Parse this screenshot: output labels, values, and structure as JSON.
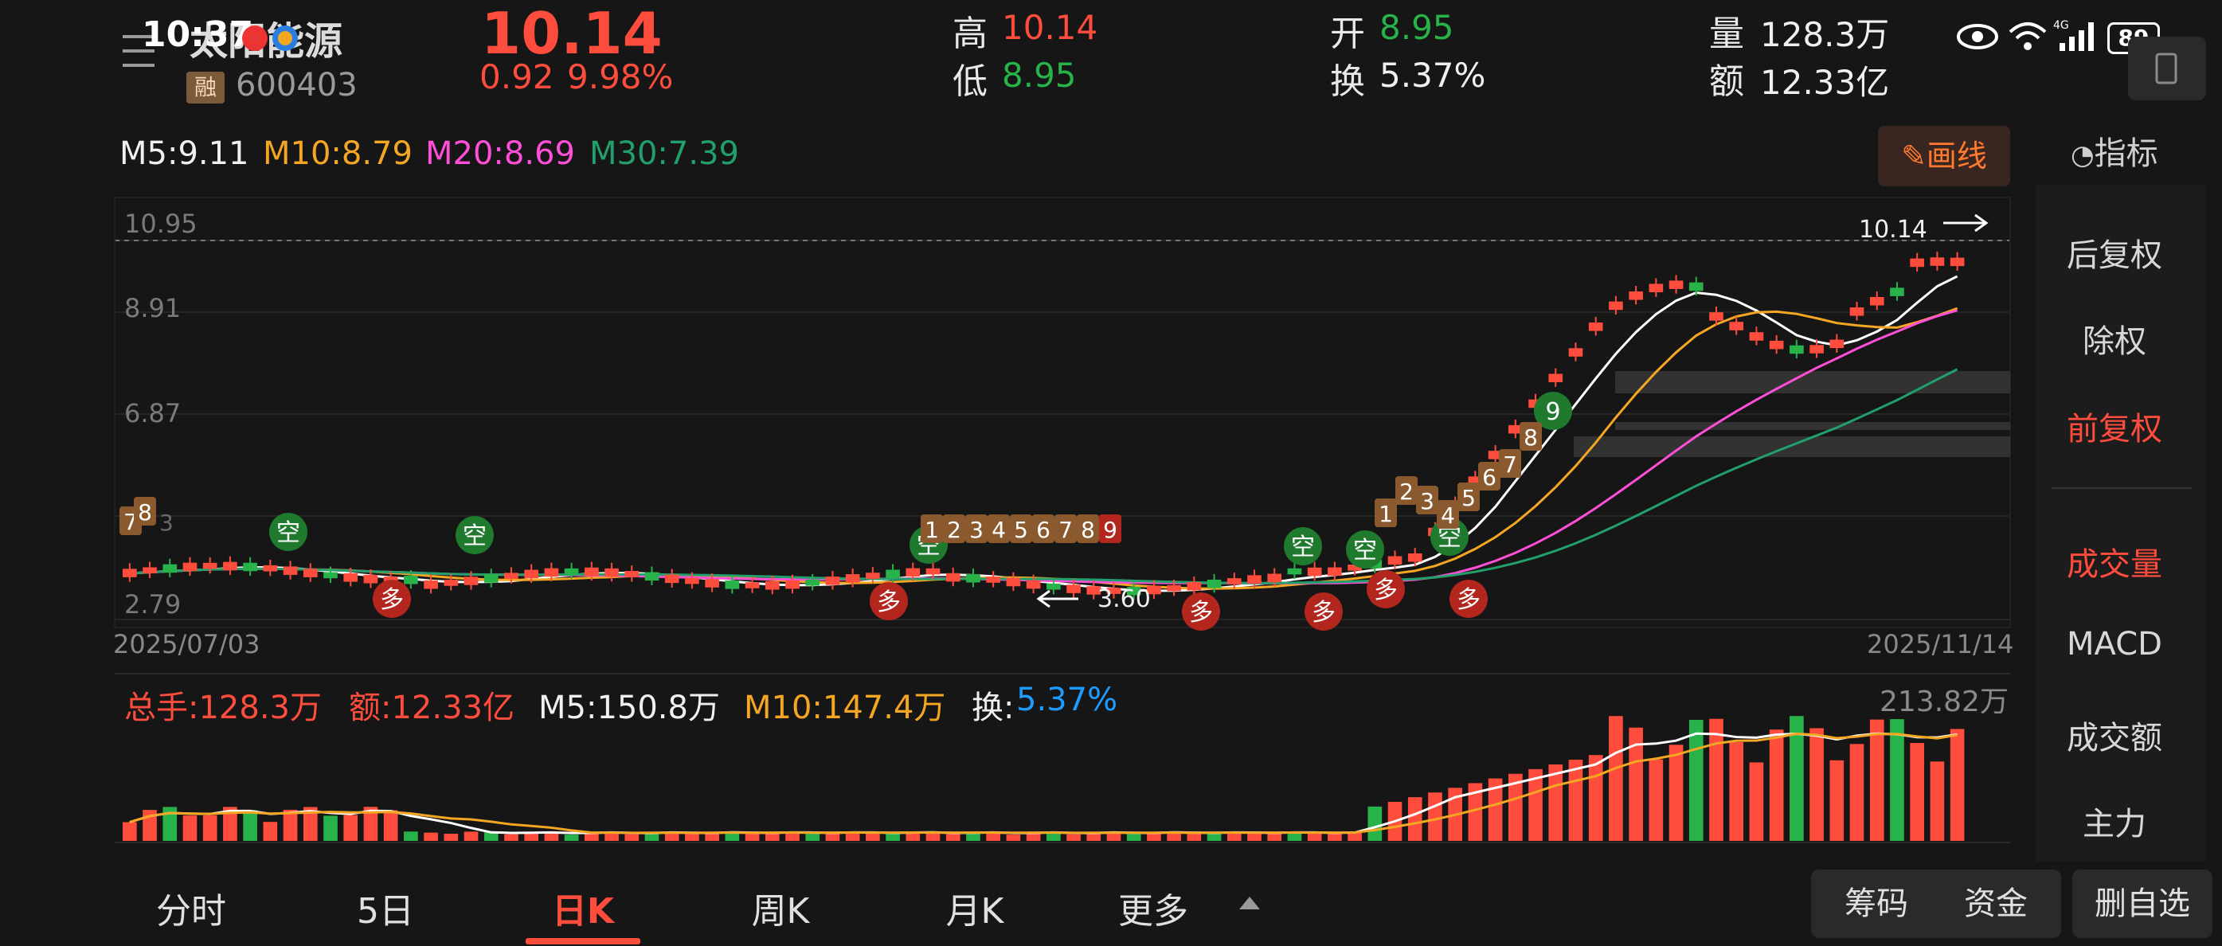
{
  "status_bar": {
    "time": "10:37",
    "battery": "89",
    "network": "4G"
  },
  "header": {
    "stock_name": "太阳能源",
    "badge": "融",
    "code": "600403",
    "price": "10.14",
    "change": "0.92",
    "change_pct": "9.98%",
    "high_label": "高",
    "high": "10.14",
    "low_label": "低",
    "low": "8.95",
    "open_label": "开",
    "open": "8.95",
    "turnover_label": "换",
    "turnover": "5.37%",
    "volume_label": "量",
    "volume": "128.3万",
    "amount_label": "额",
    "amount": "12.33亿"
  },
  "ma_legend": {
    "m5": "M5:9.11",
    "m10": "M10:8.79",
    "m20": "M20:8.69",
    "m30": "M30:7.39"
  },
  "draw_button": "画线",
  "indicator_button": "指标",
  "price_axis": [
    "10.95",
    "8.91",
    "6.87",
    "2.79"
  ],
  "price_axis_partial": "3",
  "latest_price_tag": "10.14",
  "low_marker": "3.60",
  "date_start": "2025/07/03",
  "date_end": "2025/11/14",
  "signal_labels": {
    "long": "多",
    "short": "空"
  },
  "volume_legend": {
    "total": "总手:128.3万",
    "amount": "额:12.33亿",
    "m5": "M5:150.8万",
    "m10": "M10:147.4万",
    "turnover_label": "换:",
    "turnover": "5.37%"
  },
  "volume_max": "213.82万",
  "side_menu": [
    "后复权",
    "除权",
    "前复权",
    "成交量",
    "MACD",
    "成交额",
    "主力"
  ],
  "bottom_tabs": [
    "分时",
    "5日",
    "日K",
    "周K",
    "月K",
    "更多"
  ],
  "bottom_buttons": [
    "筹码",
    "资金",
    "删自选"
  ],
  "colors": {
    "up": "#ff4d3d",
    "down": "#27b34a",
    "ma5": "#ffffff",
    "ma10": "#f5a623",
    "ma20": "#ff4fd8",
    "ma30": "#22a06b",
    "background": "#161616"
  }
}
